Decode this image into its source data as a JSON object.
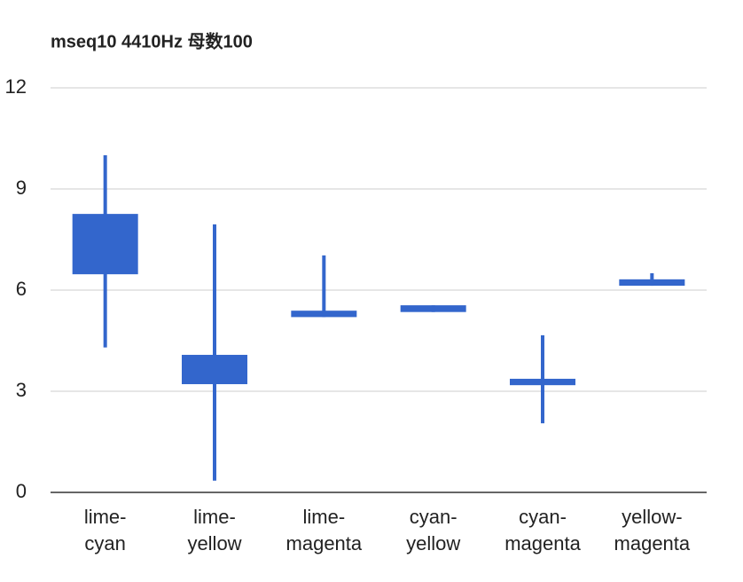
{
  "chart_data": {
    "type": "candlestick",
    "title": "mseq10 4410Hz 母数100",
    "categories": [
      "lime-cyan",
      "lime-yellow",
      "lime-magenta",
      "cyan-yellow",
      "cyan-magenta",
      "yellow-magenta"
    ],
    "low": [
      4.3,
      0.35,
      5.2,
      5.35,
      2.05,
      6.13
    ],
    "open": [
      6.47,
      4.08,
      5.2,
      5.35,
      3.18,
      6.13
    ],
    "close": [
      8.26,
      3.21,
      5.39,
      5.55,
      3.37,
      6.32
    ],
    "high": [
      10,
      7.95,
      7.03,
      5.55,
      4.66,
      6.5
    ],
    "color": "#3366cc",
    "ylim": [
      0,
      12
    ],
    "yticks": [
      0,
      3,
      6,
      9,
      12
    ],
    "grid": true
  }
}
